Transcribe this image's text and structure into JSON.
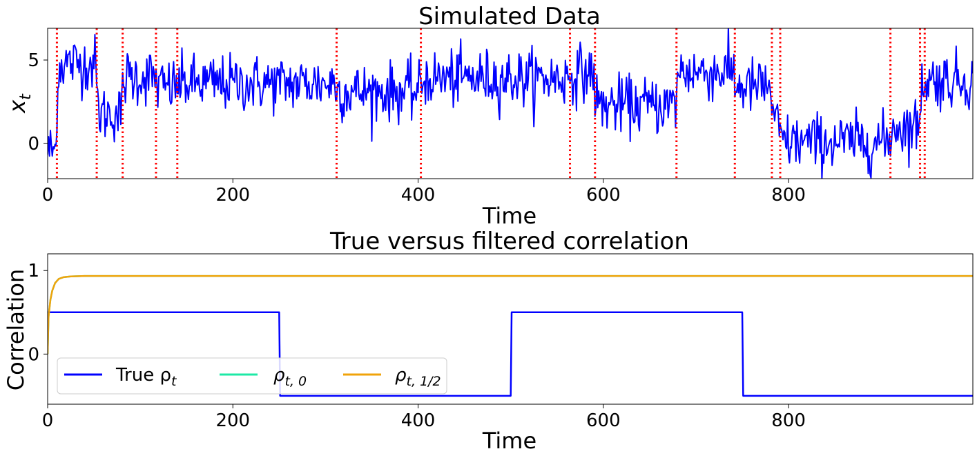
{
  "chart_data": [
    {
      "type": "line",
      "title": "Simulated Data",
      "xlabel": "Time",
      "ylabel": "x",
      "ylabel_sub": "t",
      "xlim": [
        0,
        999
      ],
      "ylim": [
        -2.1,
        6.9
      ],
      "xticks": [
        0,
        200,
        400,
        600,
        800
      ],
      "xtick_labels": [
        "0",
        "200",
        "400",
        "600",
        "800"
      ],
      "yticks": [
        0,
        5
      ],
      "ytick_labels": [
        "0",
        "5"
      ],
      "grid": false,
      "series_color": "#0000ff",
      "changepoint_color": "#ff0000",
      "changepoints": [
        10,
        53,
        81,
        117,
        140,
        312,
        403,
        564,
        591,
        679,
        742,
        782,
        791,
        910,
        942,
        947
      ],
      "segment_levels": [
        {
          "start": 0,
          "end": 10,
          "level": -0.4
        },
        {
          "start": 10,
          "end": 53,
          "level": 4.8
        },
        {
          "start": 53,
          "end": 81,
          "level": 1.8
        },
        {
          "start": 81,
          "end": 117,
          "level": 4.0
        },
        {
          "start": 117,
          "end": 140,
          "level": 3.4
        },
        {
          "start": 140,
          "end": 312,
          "level": 3.6
        },
        {
          "start": 312,
          "end": 403,
          "level": 3.1
        },
        {
          "start": 403,
          "end": 564,
          "level": 3.9
        },
        {
          "start": 564,
          "end": 591,
          "level": 4.2
        },
        {
          "start": 591,
          "end": 679,
          "level": 2.3
        },
        {
          "start": 679,
          "end": 742,
          "level": 4.3
        },
        {
          "start": 742,
          "end": 782,
          "level": 3.4
        },
        {
          "start": 782,
          "end": 791,
          "level": 1.0
        },
        {
          "start": 791,
          "end": 910,
          "level": 0.1
        },
        {
          "start": 910,
          "end": 942,
          "level": 1.0
        },
        {
          "start": 942,
          "end": 947,
          "level": 3.7
        },
        {
          "start": 947,
          "end": 999,
          "level": 3.8
        }
      ],
      "noise_sd": 0.85
    },
    {
      "type": "line",
      "title": "True versus filtered correlation",
      "xlabel": "Time",
      "ylabel": "Correlation",
      "xlim": [
        0,
        999
      ],
      "ylim": [
        -0.6,
        1.2
      ],
      "xticks": [
        0,
        200,
        400,
        600,
        800
      ],
      "xtick_labels": [
        "0",
        "200",
        "400",
        "600",
        "800"
      ],
      "yticks": [
        0,
        1
      ],
      "ytick_labels": [
        "0",
        "1"
      ],
      "grid": false,
      "legend_placement": "lower-left",
      "series": [
        {
          "name": "True ρ",
          "name_sub": "t",
          "color": "#0000ff",
          "x": [
            0,
            250,
            251,
            500,
            501,
            750,
            751,
            999
          ],
          "values": [
            0.5,
            0.5,
            -0.5,
            -0.5,
            0.5,
            0.5,
            -0.5,
            -0.5
          ]
        },
        {
          "name": "ρ",
          "name_sub": "t, 0",
          "color": "#1de9a6",
          "x": [
            0,
            1,
            3,
            5,
            8,
            12,
            17,
            25,
            40,
            80,
            999
          ],
          "values": [
            0.0,
            0.45,
            0.65,
            0.76,
            0.85,
            0.9,
            0.92,
            0.93,
            0.935,
            0.935,
            0.935
          ]
        },
        {
          "name": "ρ",
          "name_sub": "t, 1/2",
          "color": "#f0a30a",
          "x": [
            0,
            1,
            3,
            5,
            8,
            12,
            17,
            25,
            40,
            80,
            999
          ],
          "values": [
            0.0,
            0.45,
            0.65,
            0.76,
            0.85,
            0.9,
            0.92,
            0.93,
            0.935,
            0.935,
            0.935
          ]
        }
      ]
    }
  ]
}
